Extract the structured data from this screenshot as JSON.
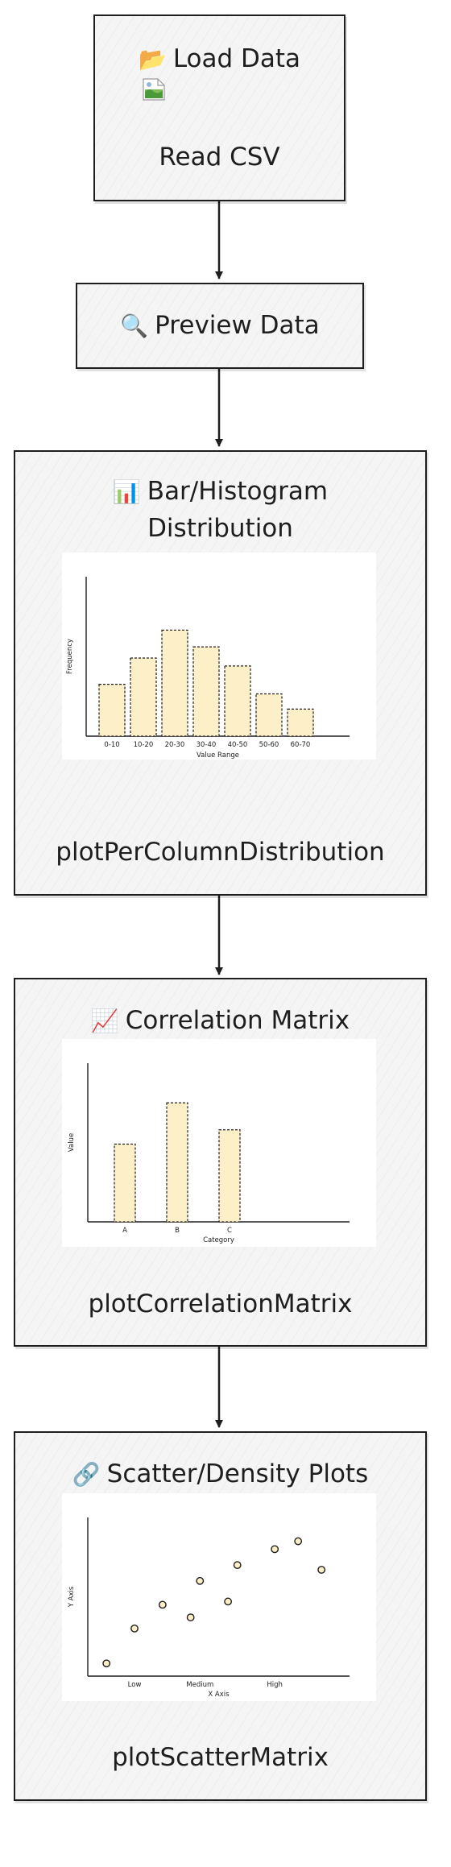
{
  "nodes": {
    "load": {
      "icon": "📂",
      "icon_name": "folder-icon",
      "title": "Load Data",
      "subtitle": "Read CSV"
    },
    "preview": {
      "icon": "🔍",
      "icon_name": "magnifier-icon",
      "title": "Preview Data"
    },
    "distribution": {
      "icon": "📊",
      "icon_name": "bar-chart-icon",
      "title": "Bar/Histogram",
      "title_line2": "Distribution",
      "subtitle": "plotPerColumnDistribution"
    },
    "correlation": {
      "icon": "📈",
      "icon_name": "line-chart-icon",
      "title": "Correlation Matrix",
      "subtitle": "plotCorrelationMatrix"
    },
    "scatter": {
      "icon": "🔗",
      "icon_name": "link-icon",
      "title": "Scatter/Density Plots",
      "subtitle": "plotScatterMatrix"
    }
  },
  "chart_data": [
    {
      "type": "bar",
      "categories": [
        "0-10",
        "10-20",
        "20-30",
        "30-40",
        "40-50",
        "50-60",
        "60-70"
      ],
      "values": [
        6.5,
        9.8,
        13.3,
        11.2,
        8.8,
        5.3,
        3.4
      ],
      "xlabel": "Value Range",
      "ylabel": "Frequency",
      "ylim": [
        0,
        20
      ],
      "grid": false,
      "color": "#fdf0c8"
    },
    {
      "type": "bar",
      "categories": [
        "A",
        "B",
        "C"
      ],
      "values": [
        9.8,
        15,
        11.6
      ],
      "xlabel": "Category",
      "ylabel": "Value",
      "ylim": [
        0,
        20
      ],
      "grid": false,
      "color": "#fdf0c8"
    },
    {
      "type": "scatter",
      "x_categories": [
        "Low",
        "Medium",
        "High"
      ],
      "x": [
        0.4,
        1.0,
        1.6,
        2.2,
        2.4,
        3.0,
        3.2,
        4.0,
        4.5,
        5.0
      ],
      "y": [
        0.8,
        3.0,
        4.5,
        3.7,
        6.0,
        4.7,
        7.0,
        8.0,
        8.5,
        6.7
      ],
      "xlabel": "X Axis",
      "ylabel": "Y Axis",
      "xlim": [
        0,
        5.6
      ],
      "ylim": [
        0,
        10
      ],
      "grid": false,
      "color": "#fdf0c8"
    }
  ]
}
